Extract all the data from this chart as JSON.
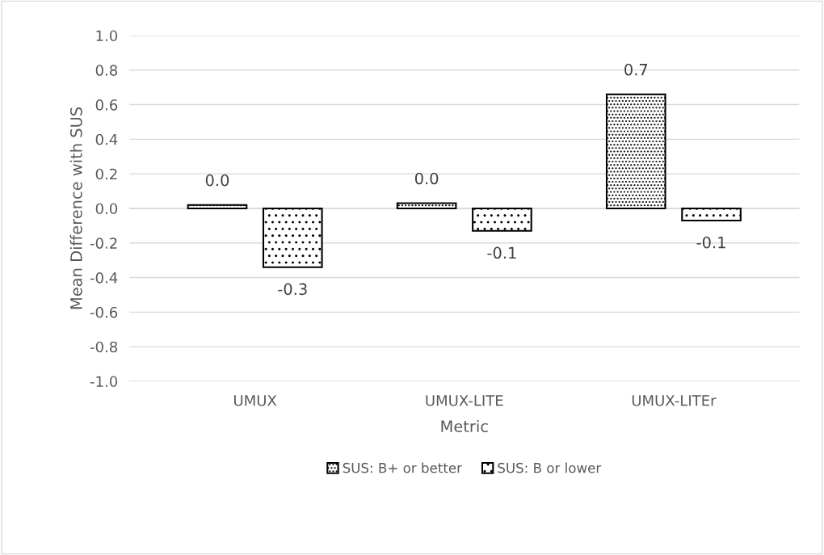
{
  "chart_data": {
    "type": "bar",
    "xlabel": "Metric",
    "ylabel": "Mean Difference with SUS",
    "categories": [
      "UMUX",
      "UMUX-LITE",
      "UMUX-LITEr"
    ],
    "series": [
      {
        "name": "SUS: B+ or better",
        "color": "#000000",
        "values": [
          0.02,
          0.03,
          0.66
        ],
        "value_labels": [
          "0.0",
          "0.0",
          "0.7"
        ]
      },
      {
        "name": "SUS: B or lower",
        "color": "#000000",
        "values": [
          -0.34,
          -0.13,
          -0.07
        ],
        "value_labels": [
          "-0.3",
          "-0.1",
          "-0.1"
        ]
      }
    ],
    "ylim": [
      -1.0,
      1.0
    ],
    "yticks": [
      {
        "value": -1.0,
        "label": "-1.0"
      },
      {
        "value": -0.8,
        "label": "-0.8"
      },
      {
        "value": -0.6,
        "label": "-0.6"
      },
      {
        "value": -0.4,
        "label": "-0.4"
      },
      {
        "value": -0.2,
        "label": "-0.2"
      },
      {
        "value": 0.0,
        "label": "0.0"
      },
      {
        "value": 0.2,
        "label": "0.2"
      },
      {
        "value": 0.4,
        "label": "0.4"
      },
      {
        "value": 0.6,
        "label": "0.6"
      },
      {
        "value": 0.8,
        "label": "0.8"
      },
      {
        "value": 1.0,
        "label": "1.0"
      }
    ],
    "grid": "y",
    "legend": "bottom"
  }
}
